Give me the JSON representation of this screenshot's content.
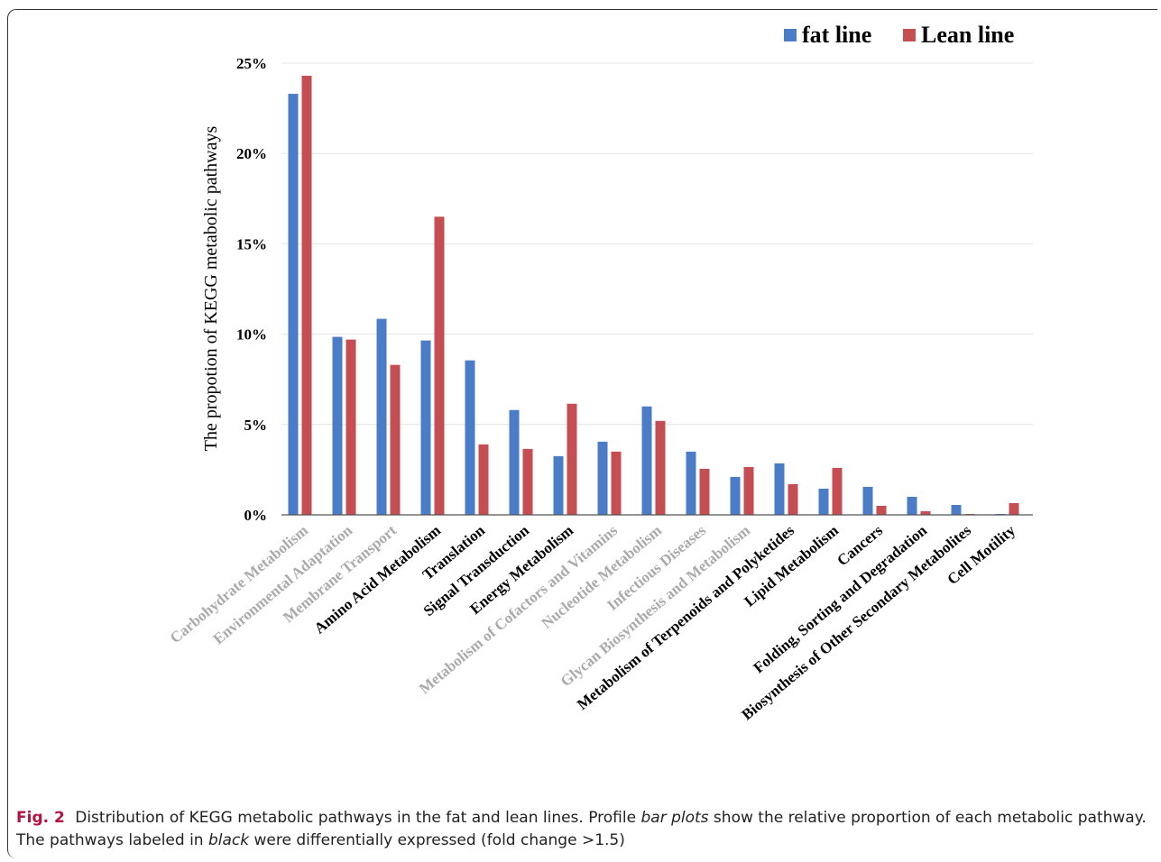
{
  "chart_data": {
    "type": "bar",
    "title": "",
    "xlabel": "",
    "ylabel": "The propotion of KEGG metabolic pathways",
    "ylim": [
      0,
      25
    ],
    "yticks": [
      "0%",
      "5%",
      "10%",
      "15%",
      "20%",
      "25%"
    ],
    "grid": true,
    "legend_position": "top-right",
    "categories": [
      "Carbohydrate Metabolism",
      "Environmental Adaptation",
      "Membrane Transport",
      "Amino Acid Metabolism",
      "Translation",
      "Signal Transduction",
      "Energy Metabolism",
      "Metabolism of Cofactors and Vitamins",
      "Nucleotide Metabolism",
      "Infectious Diseases",
      "Glycan Biosynthesis and Metabolism",
      "Metabolism of Terpenoids and Polyketides",
      "Lipid Metabolism",
      "Cancers",
      "Folding, Sorting and Degradation",
      "Biosynthesis of Other Secondary Metabolites",
      "Cell Motility"
    ],
    "category_label_colors": [
      "#aaaaaa",
      "#aaaaaa",
      "#aaaaaa",
      "#000000",
      "#000000",
      "#000000",
      "#000000",
      "#aaaaaa",
      "#aaaaaa",
      "#aaaaaa",
      "#aaaaaa",
      "#000000",
      "#000000",
      "#000000",
      "#000000",
      "#000000",
      "#000000"
    ],
    "series": [
      {
        "name": "fat line",
        "color": "#4a7cc7",
        "values": [
          23.3,
          9.85,
          10.85,
          9.65,
          8.55,
          5.8,
          3.25,
          4.05,
          6.0,
          3.5,
          2.1,
          2.85,
          1.45,
          1.55,
          1.0,
          0.55,
          0.05
        ]
      },
      {
        "name": "Lean line",
        "color": "#c44e52",
        "values": [
          24.3,
          9.7,
          8.3,
          16.5,
          3.9,
          3.65,
          6.15,
          3.5,
          5.2,
          2.55,
          2.65,
          1.7,
          2.6,
          0.5,
          0.2,
          0.05,
          0.65
        ]
      }
    ]
  },
  "caption": {
    "label": "Fig. 2",
    "text_parts": [
      {
        "text": "Distribution of KEGG metabolic pathways in the fat and lean lines. Profile ",
        "italic": false
      },
      {
        "text": "bar plots",
        "italic": true
      },
      {
        "text": " show the relative proportion of each metabolic pathway. The pathways labeled in ",
        "italic": false
      },
      {
        "text": "black",
        "italic": true
      },
      {
        "text": " were differentially expressed (fold change >1.5)",
        "italic": false
      }
    ]
  }
}
